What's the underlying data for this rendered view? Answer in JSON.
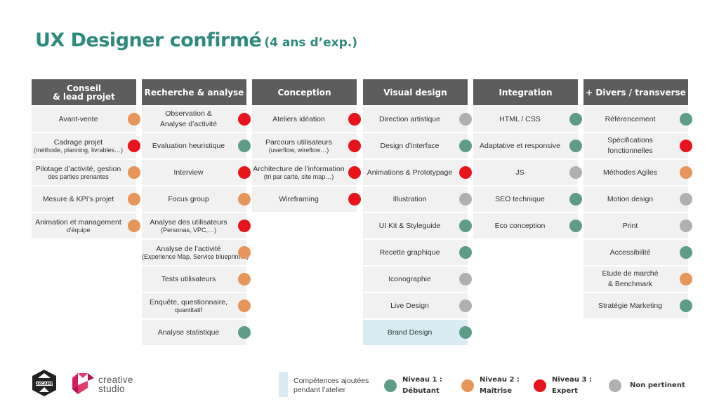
{
  "title": {
    "main": "UX Designer confirmé",
    "sub": "(4 ans d’exp.)"
  },
  "colors": {
    "debutant": "#5e9d85",
    "maitrise": "#e8955a",
    "expert": "#e8141c",
    "non_pertinent": "#b0b0b0",
    "header_bg": "#5d5d5d",
    "cell_bg": "#f1f1f1",
    "highlight_bg": "#d9ecf3",
    "title": "#2f8a7e"
  },
  "columns": [
    {
      "header_l1": "Conseil",
      "header_l2": "& lead projet",
      "items": [
        {
          "l1": "Avant-vente",
          "l2": "",
          "level": "maitrise"
        },
        {
          "l1": "Cadrage projet",
          "l2": "(méthode, planning, livrables…)",
          "level": "expert"
        },
        {
          "l1": "Pilotage d’activité, gestion",
          "l2": "des parties prenantes",
          "level": "maitrise"
        },
        {
          "l1": "Mesure & KPI’s projet",
          "l2": "",
          "level": "maitrise"
        },
        {
          "l1": "Animation et management",
          "l2": "d’équipe",
          "level": "maitrise"
        }
      ]
    },
    {
      "header_l1": "Recherche & analyse",
      "header_l2": "",
      "items": [
        {
          "l1": "Observation &",
          "l2": "Analyse d’activité",
          "level": "expert",
          "tall": true
        },
        {
          "l1": "Evaluation heuristique",
          "l2": "",
          "level": "debutant"
        },
        {
          "l1": "Interview",
          "l2": "",
          "level": "expert"
        },
        {
          "l1": "Focus group",
          "l2": "",
          "level": "maitrise"
        },
        {
          "l1": "Analyse des utilisateurs",
          "l2": "(Personas, VPC,…)",
          "level": "expert"
        },
        {
          "l1": "Analyse de l’activité",
          "l2": "(Experience Map, Service blueprint…)",
          "level": "maitrise"
        },
        {
          "l1": "Tests utilisateurs",
          "l2": "",
          "level": "maitrise"
        },
        {
          "l1": "Enquête, questionnaire,",
          "l2": "quantitatif",
          "level": "maitrise"
        },
        {
          "l1": "Analyse statistique",
          "l2": "",
          "level": "debutant"
        }
      ]
    },
    {
      "header_l1": "Conception",
      "header_l2": "",
      "items": [
        {
          "l1": "Ateliers idéation",
          "l2": "",
          "level": "expert"
        },
        {
          "l1": "Parcours utilisateurs",
          "l2": "(userflow, wireflow…)",
          "level": "expert"
        },
        {
          "l1": "Architecture de l’information",
          "l2": "(tri par carte, site map…)",
          "level": "expert"
        },
        {
          "l1": "Wireframing",
          "l2": "",
          "level": "expert"
        }
      ]
    },
    {
      "header_l1": "Visual design",
      "header_l2": "",
      "items": [
        {
          "l1": "Direction artistique",
          "l2": "",
          "level": "non_pertinent"
        },
        {
          "l1": "Design d’interface",
          "l2": "",
          "level": "debutant"
        },
        {
          "l1": "Animations & Prototypage",
          "l2": "",
          "level": "expert"
        },
        {
          "l1": "Illustration",
          "l2": "",
          "level": "non_pertinent"
        },
        {
          "l1": "UI Kit & Styleguide",
          "l2": "",
          "level": "debutant"
        },
        {
          "l1": "Recette graphique",
          "l2": "",
          "level": "debutant"
        },
        {
          "l1": "Iconographie",
          "l2": "",
          "level": "non_pertinent"
        },
        {
          "l1": "Live Design",
          "l2": "",
          "level": "non_pertinent"
        },
        {
          "l1": "Brand Design",
          "l2": "",
          "level": "debutant",
          "highlight": true
        }
      ]
    },
    {
      "header_l1": "Integration",
      "header_l2": "",
      "items": [
        {
          "l1": "HTML / CSS",
          "l2": "",
          "level": "debutant"
        },
        {
          "l1": "Adaptative et responsive",
          "l2": "",
          "level": "debutant"
        },
        {
          "l1": "JS",
          "l2": "",
          "level": "non_pertinent"
        },
        {
          "l1": "SEO technique",
          "l2": "",
          "level": "debutant"
        },
        {
          "l1": "Eco conception",
          "l2": "",
          "level": "debutant"
        }
      ]
    },
    {
      "header_l1": "+ Divers / transverse",
      "header_l2": "",
      "items": [
        {
          "l1": "Référencement",
          "l2": "",
          "level": "debutant"
        },
        {
          "l1": "Spécifications",
          "l2": "fonctionnelles",
          "level": "expert",
          "tall": true
        },
        {
          "l1": "Méthodes Agiles",
          "l2": "",
          "level": "maitrise"
        },
        {
          "l1": "Motion design",
          "l2": "",
          "level": "non_pertinent"
        },
        {
          "l1": "Print",
          "l2": "",
          "level": "non_pertinent"
        },
        {
          "l1": "Accessibilité",
          "l2": "",
          "level": "debutant"
        },
        {
          "l1": "Etude de marché",
          "l2": "& Benchmark",
          "level": "maitrise",
          "tall": true
        },
        {
          "l1": "Stratégie Marketing",
          "l2": "",
          "level": "debutant"
        }
      ]
    }
  ],
  "legend": {
    "added_l1": "Compétences ajoutées",
    "added_l2": "pendant l’atelier",
    "levels": [
      {
        "key": "debutant",
        "l1": "Niveau 1 :",
        "l2": "Débutant"
      },
      {
        "key": "maitrise",
        "l1": "Niveau 2 :",
        "l2": "Maîtrise"
      },
      {
        "key": "expert",
        "l1": "Niveau 3 :",
        "l2": "Expert"
      },
      {
        "key": "non_pertinent",
        "l1": "Non pertinent",
        "l2": ""
      }
    ]
  },
  "logos": {
    "ux_icon": "uxcamp-logo",
    "cs_icon": "creative-studio-logo",
    "cs_l1": "creative",
    "cs_l2": "studio"
  }
}
